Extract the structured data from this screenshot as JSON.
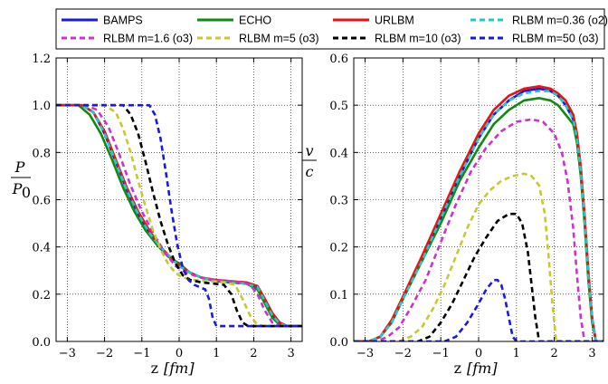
{
  "legend": {
    "entries": [
      {
        "label": "BAMPS",
        "color": "#1a1adf",
        "dash": "solid"
      },
      {
        "label": "ECHO",
        "color": "#108a10",
        "dash": "solid"
      },
      {
        "label": "URLBM",
        "color": "#ee1111",
        "dash": "solid"
      },
      {
        "label": "RLBM m=0.36 (o2)",
        "color": "#20c8c8",
        "dash": "dashed"
      },
      {
        "label": "RLBM m=1.6 (o3)",
        "color": "#cc33cc",
        "dash": "dashed"
      },
      {
        "label": "RLBM m=5 (o3)",
        "color": "#c8c830",
        "dash": "dashed"
      },
      {
        "label": "RLBM m=10 (o3)",
        "color": "#000000",
        "dash": "dashed"
      },
      {
        "label": "RLBM m=50 (o3)",
        "color": "#1a1adf",
        "dash": "dashed"
      }
    ]
  },
  "chart_data": [
    {
      "type": "line",
      "xlabel_main": "z",
      "xlabel_unit": "[fm]",
      "ylabel_num": "P",
      "ylabel_den": "P",
      "ylabel_den_sub": "0",
      "xlim": [
        -3.3,
        3.3
      ],
      "ylim": [
        0.0,
        1.2
      ],
      "xticks": [
        -3,
        -2,
        -1,
        0,
        1,
        2,
        3
      ],
      "yticks": [
        0.0,
        0.2,
        0.4,
        0.6,
        0.8,
        1.0,
        1.2
      ],
      "ytick_labels": [
        "0.0",
        "0.2",
        "0.4",
        "0.6",
        "0.8",
        "1.0",
        "1.2"
      ],
      "grid": true,
      "series": [
        {
          "name": "BAMPS",
          "x": [
            -3.3,
            -2.6,
            -2.3,
            -2.0,
            -1.7,
            -1.4,
            -1.1,
            -0.8,
            -0.5,
            -0.2,
            0.0,
            0.3,
            0.6,
            1.0,
            1.4,
            1.8,
            2.1,
            2.3,
            2.5,
            2.7,
            2.9,
            3.3
          ],
          "y": [
            1.0,
            1.0,
            0.97,
            0.88,
            0.76,
            0.64,
            0.54,
            0.46,
            0.4,
            0.35,
            0.32,
            0.29,
            0.27,
            0.255,
            0.25,
            0.245,
            0.23,
            0.17,
            0.11,
            0.075,
            0.065,
            0.065
          ]
        },
        {
          "name": "ECHO",
          "x": [
            -3.3,
            -2.7,
            -2.4,
            -2.1,
            -1.8,
            -1.5,
            -1.2,
            -0.9,
            -0.6,
            -0.3,
            0.0,
            0.3,
            0.6,
            1.0,
            1.4,
            1.8,
            2.1,
            2.3,
            2.5,
            2.7,
            2.9,
            3.3
          ],
          "y": [
            1.0,
            1.0,
            0.96,
            0.88,
            0.77,
            0.65,
            0.55,
            0.47,
            0.41,
            0.36,
            0.33,
            0.29,
            0.27,
            0.255,
            0.25,
            0.245,
            0.22,
            0.16,
            0.1,
            0.07,
            0.065,
            0.065
          ]
        },
        {
          "name": "URLBM",
          "x": [
            -3.3,
            -2.6,
            -2.3,
            -2.0,
            -1.7,
            -1.4,
            -1.1,
            -0.8,
            -0.5,
            -0.2,
            0.0,
            0.3,
            0.6,
            1.0,
            1.4,
            1.8,
            2.1,
            2.3,
            2.5,
            2.7,
            2.9,
            3.3
          ],
          "y": [
            1.0,
            1.0,
            0.97,
            0.89,
            0.77,
            0.65,
            0.55,
            0.47,
            0.4,
            0.35,
            0.32,
            0.29,
            0.27,
            0.26,
            0.255,
            0.25,
            0.235,
            0.18,
            0.12,
            0.08,
            0.065,
            0.065
          ]
        },
        {
          "name": "RLBM m=0.36 (o2)",
          "x": [
            -3.3,
            -2.6,
            -2.3,
            -2.0,
            -1.7,
            -1.4,
            -1.1,
            -0.8,
            -0.5,
            -0.2,
            0.0,
            0.3,
            0.6,
            1.0,
            1.4,
            1.8,
            2.1,
            2.3,
            2.5,
            2.7,
            2.9,
            3.3
          ],
          "y": [
            1.0,
            1.0,
            0.97,
            0.88,
            0.76,
            0.64,
            0.54,
            0.46,
            0.4,
            0.35,
            0.32,
            0.29,
            0.27,
            0.255,
            0.25,
            0.245,
            0.23,
            0.17,
            0.11,
            0.075,
            0.065,
            0.065
          ]
        },
        {
          "name": "RLBM m=1.6 (o3)",
          "x": [
            -3.3,
            -2.5,
            -2.2,
            -1.9,
            -1.6,
            -1.3,
            -1.0,
            -0.7,
            -0.4,
            -0.1,
            0.2,
            0.6,
            1.0,
            1.4,
            1.7,
            1.9,
            2.1,
            2.3,
            2.5,
            2.7,
            3.3
          ],
          "y": [
            1.0,
            1.0,
            0.98,
            0.91,
            0.79,
            0.66,
            0.55,
            0.46,
            0.38,
            0.32,
            0.29,
            0.27,
            0.26,
            0.255,
            0.25,
            0.24,
            0.2,
            0.13,
            0.08,
            0.065,
            0.065
          ]
        },
        {
          "name": "RLBM m=5 (o3)",
          "x": [
            -3.3,
            -2.0,
            -1.7,
            -1.5,
            -1.3,
            -1.1,
            -0.9,
            -0.7,
            -0.5,
            -0.3,
            -0.1,
            0.1,
            0.4,
            0.8,
            1.2,
            1.5,
            1.7,
            1.9,
            2.1,
            2.3,
            3.3
          ],
          "y": [
            1.0,
            1.0,
            0.97,
            0.9,
            0.8,
            0.68,
            0.57,
            0.47,
            0.39,
            0.33,
            0.29,
            0.27,
            0.26,
            0.255,
            0.25,
            0.24,
            0.18,
            0.11,
            0.07,
            0.065,
            0.065
          ]
        },
        {
          "name": "RLBM m=10 (o3)",
          "x": [
            -3.3,
            -1.5,
            -1.3,
            -1.1,
            -0.9,
            -0.7,
            -0.5,
            -0.3,
            -0.1,
            0.1,
            0.3,
            0.6,
            0.9,
            1.2,
            1.4,
            1.55,
            1.7,
            1.85,
            2.0,
            3.3
          ],
          "y": [
            1.0,
            1.0,
            0.96,
            0.88,
            0.76,
            0.63,
            0.51,
            0.41,
            0.33,
            0.28,
            0.26,
            0.25,
            0.245,
            0.24,
            0.2,
            0.13,
            0.08,
            0.065,
            0.065,
            0.065
          ]
        },
        {
          "name": "RLBM m=50 (o3)",
          "x": [
            -3.3,
            -0.8,
            -0.65,
            -0.5,
            -0.35,
            -0.2,
            -0.05,
            0.1,
            0.25,
            0.4,
            0.55,
            0.7,
            0.8,
            0.9,
            1.0,
            3.3
          ],
          "y": [
            1.0,
            1.0,
            0.96,
            0.86,
            0.71,
            0.55,
            0.41,
            0.31,
            0.26,
            0.24,
            0.23,
            0.22,
            0.18,
            0.1,
            0.065,
            0.065
          ]
        }
      ]
    },
    {
      "type": "line",
      "xlabel_main": "z",
      "xlabel_unit": "[fm]",
      "ylabel_num": "v",
      "ylabel_den": "c",
      "xlim": [
        -3.3,
        3.3
      ],
      "ylim": [
        0.0,
        0.6
      ],
      "xticks": [
        -3,
        -2,
        -1,
        0,
        1,
        2,
        3
      ],
      "yticks": [
        0.0,
        0.1,
        0.2,
        0.3,
        0.4,
        0.5,
        0.6
      ],
      "ytick_labels": [
        "0.0",
        "0.1",
        "0.2",
        "0.3",
        "0.4",
        "0.5",
        "0.6"
      ],
      "grid": true,
      "series": [
        {
          "name": "BAMPS",
          "x": [
            -3.3,
            -2.9,
            -2.6,
            -2.3,
            -2.0,
            -1.5,
            -1.0,
            -0.5,
            0.0,
            0.4,
            0.8,
            1.2,
            1.6,
            1.9,
            2.1,
            2.3,
            2.5,
            2.6,
            2.7,
            2.8,
            2.9,
            3.0,
            3.1,
            3.3
          ],
          "y": [
            0.0,
            0.0,
            0.01,
            0.04,
            0.09,
            0.17,
            0.26,
            0.35,
            0.43,
            0.48,
            0.51,
            0.53,
            0.535,
            0.53,
            0.52,
            0.5,
            0.47,
            0.43,
            0.36,
            0.26,
            0.14,
            0.05,
            0.0,
            0.0
          ]
        },
        {
          "name": "ECHO",
          "x": [
            -3.3,
            -2.9,
            -2.6,
            -2.3,
            -2.0,
            -1.5,
            -1.0,
            -0.5,
            0.0,
            0.4,
            0.8,
            1.2,
            1.6,
            1.9,
            2.1,
            2.3,
            2.5,
            2.6,
            2.7,
            2.8,
            2.9,
            3.0,
            3.1,
            3.3
          ],
          "y": [
            0.0,
            0.0,
            0.01,
            0.04,
            0.09,
            0.17,
            0.25,
            0.34,
            0.41,
            0.46,
            0.49,
            0.51,
            0.515,
            0.51,
            0.5,
            0.48,
            0.46,
            0.42,
            0.35,
            0.25,
            0.13,
            0.04,
            0.0,
            0.0
          ]
        },
        {
          "name": "URLBM",
          "x": [
            -3.3,
            -2.9,
            -2.6,
            -2.3,
            -2.0,
            -1.5,
            -1.0,
            -0.5,
            0.0,
            0.4,
            0.8,
            1.2,
            1.6,
            1.9,
            2.1,
            2.3,
            2.5,
            2.6,
            2.7,
            2.8,
            2.9,
            3.0,
            3.1,
            3.3
          ],
          "y": [
            0.0,
            0.0,
            0.01,
            0.045,
            0.095,
            0.18,
            0.27,
            0.36,
            0.44,
            0.49,
            0.52,
            0.535,
            0.54,
            0.535,
            0.525,
            0.51,
            0.48,
            0.44,
            0.37,
            0.27,
            0.15,
            0.05,
            0.0,
            0.0
          ]
        },
        {
          "name": "RLBM m=0.36 (o2)",
          "x": [
            -3.3,
            -2.9,
            -2.6,
            -2.3,
            -2.0,
            -1.5,
            -1.0,
            -0.5,
            0.0,
            0.4,
            0.8,
            1.2,
            1.6,
            1.9,
            2.1,
            2.3,
            2.5,
            2.6,
            2.7,
            2.8,
            2.9,
            3.0,
            3.1,
            3.3
          ],
          "y": [
            0.0,
            0.0,
            0.01,
            0.04,
            0.09,
            0.17,
            0.26,
            0.35,
            0.43,
            0.48,
            0.51,
            0.525,
            0.53,
            0.53,
            0.52,
            0.5,
            0.47,
            0.43,
            0.36,
            0.26,
            0.14,
            0.05,
            0.0,
            0.0
          ]
        },
        {
          "name": "RLBM m=1.6 (o3)",
          "x": [
            -3.3,
            -2.7,
            -2.4,
            -2.1,
            -1.8,
            -1.4,
            -1.0,
            -0.6,
            -0.2,
            0.2,
            0.6,
            1.0,
            1.4,
            1.7,
            2.0,
            2.2,
            2.35,
            2.5,
            2.6,
            2.7,
            2.8,
            3.3
          ],
          "y": [
            0.0,
            0.0,
            0.01,
            0.03,
            0.07,
            0.13,
            0.21,
            0.29,
            0.36,
            0.41,
            0.445,
            0.465,
            0.47,
            0.465,
            0.44,
            0.4,
            0.34,
            0.24,
            0.14,
            0.05,
            0.0,
            0.0
          ]
        },
        {
          "name": "RLBM m=5 (o3)",
          "x": [
            -3.3,
            -2.1,
            -1.8,
            -1.5,
            -1.2,
            -0.9,
            -0.6,
            -0.3,
            0.0,
            0.3,
            0.6,
            0.9,
            1.2,
            1.4,
            1.6,
            1.75,
            1.85,
            1.95,
            2.05,
            3.3
          ],
          "y": [
            0.0,
            0.0,
            0.01,
            0.03,
            0.07,
            0.12,
            0.18,
            0.24,
            0.29,
            0.32,
            0.34,
            0.35,
            0.355,
            0.35,
            0.33,
            0.27,
            0.18,
            0.08,
            0.0,
            0.0
          ]
        },
        {
          "name": "RLBM m=10 (o3)",
          "x": [
            -3.3,
            -1.6,
            -1.3,
            -1.0,
            -0.7,
            -0.4,
            -0.1,
            0.2,
            0.5,
            0.8,
            1.0,
            1.15,
            1.3,
            1.4,
            1.5,
            1.6,
            3.3
          ],
          "y": [
            0.0,
            0.0,
            0.01,
            0.04,
            0.08,
            0.13,
            0.18,
            0.22,
            0.255,
            0.27,
            0.27,
            0.25,
            0.19,
            0.12,
            0.05,
            0.0,
            0.0
          ]
        },
        {
          "name": "RLBM m=50 (o3)",
          "x": [
            -3.3,
            -0.9,
            -0.6,
            -0.3,
            0.0,
            0.2,
            0.4,
            0.5,
            0.6,
            0.7,
            0.8,
            0.9,
            1.0,
            3.3
          ],
          "y": [
            0.0,
            0.0,
            0.01,
            0.04,
            0.08,
            0.11,
            0.13,
            0.13,
            0.12,
            0.09,
            0.05,
            0.01,
            0.0,
            0.0
          ]
        }
      ]
    }
  ]
}
